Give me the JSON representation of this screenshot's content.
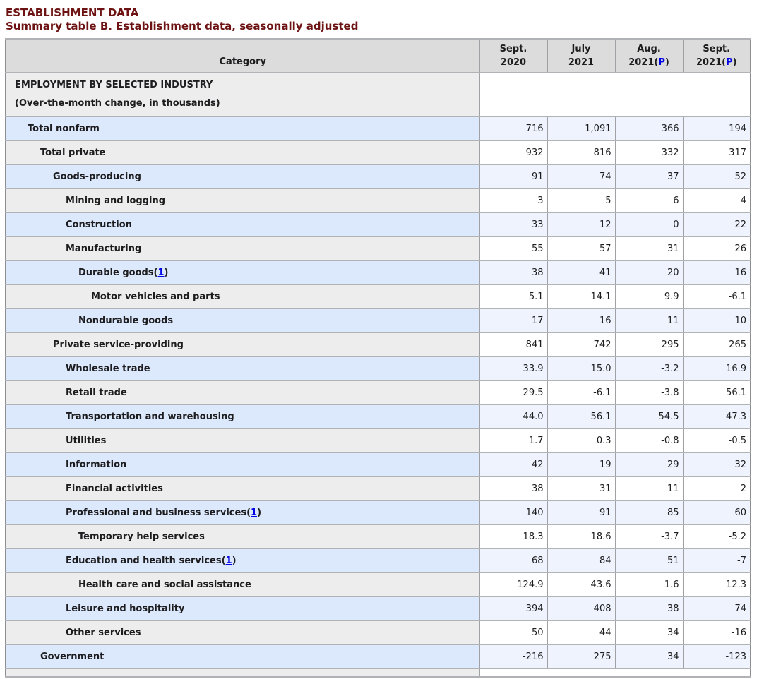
{
  "page": {
    "title": "ESTABLISHMENT DATA",
    "subtitle": "Summary table B. Establishment data, seasonally adjusted"
  },
  "colors": {
    "title_maroon": "#6e1313",
    "link_blue": "#0000e6",
    "row_blue_category": "#dce8fc",
    "row_blue_data": "#eef3fd",
    "row_gray_category": "#ededee",
    "row_gray_data": "#ffffff",
    "header_gray": "#dcdcdc"
  },
  "table": {
    "category_header": "Category",
    "preliminary_marker": "P",
    "footnote_marker": "1",
    "columns": [
      {
        "line1": "Sept.",
        "line2": "2020",
        "preliminary": false
      },
      {
        "line1": "July",
        "line2": "2021",
        "preliminary": false
      },
      {
        "line1": "Aug.",
        "line2": "2021",
        "preliminary": true
      },
      {
        "line1": "Sept.",
        "line2": "2021",
        "preliminary": true
      }
    ],
    "section": {
      "title": "EMPLOYMENT BY SELECTED INDUSTRY",
      "subtitle": "(Over-the-month change, in thousands)"
    },
    "rows": [
      {
        "label": "Total nonfarm",
        "indent": 1,
        "footnote": null,
        "values": [
          "716",
          "1,091",
          "366",
          "194"
        ]
      },
      {
        "label": "Total private",
        "indent": 2,
        "footnote": null,
        "values": [
          "932",
          "816",
          "332",
          "317"
        ]
      },
      {
        "label": "Goods-producing",
        "indent": 3,
        "footnote": null,
        "values": [
          "91",
          "74",
          "37",
          "52"
        ]
      },
      {
        "label": "Mining and logging",
        "indent": 4,
        "footnote": null,
        "values": [
          "3",
          "5",
          "6",
          "4"
        ]
      },
      {
        "label": "Construction",
        "indent": 4,
        "footnote": null,
        "values": [
          "33",
          "12",
          "0",
          "22"
        ]
      },
      {
        "label": "Manufacturing",
        "indent": 4,
        "footnote": null,
        "values": [
          "55",
          "57",
          "31",
          "26"
        ]
      },
      {
        "label": "Durable goods",
        "indent": 5,
        "footnote": "1",
        "values": [
          "38",
          "41",
          "20",
          "16"
        ]
      },
      {
        "label": "Motor vehicles and parts",
        "indent": 6,
        "footnote": null,
        "values": [
          "5.1",
          "14.1",
          "9.9",
          "-6.1"
        ]
      },
      {
        "label": "Nondurable goods",
        "indent": 5,
        "footnote": null,
        "values": [
          "17",
          "16",
          "11",
          "10"
        ]
      },
      {
        "label": "Private service-providing",
        "indent": 3,
        "footnote": null,
        "values": [
          "841",
          "742",
          "295",
          "265"
        ]
      },
      {
        "label": "Wholesale trade",
        "indent": 4,
        "footnote": null,
        "values": [
          "33.9",
          "15.0",
          "-3.2",
          "16.9"
        ]
      },
      {
        "label": "Retail trade",
        "indent": 4,
        "footnote": null,
        "values": [
          "29.5",
          "-6.1",
          "-3.8",
          "56.1"
        ]
      },
      {
        "label": "Transportation and warehousing",
        "indent": 4,
        "footnote": null,
        "values": [
          "44.0",
          "56.1",
          "54.5",
          "47.3"
        ]
      },
      {
        "label": "Utilities",
        "indent": 4,
        "footnote": null,
        "values": [
          "1.7",
          "0.3",
          "-0.8",
          "-0.5"
        ]
      },
      {
        "label": "Information",
        "indent": 4,
        "footnote": null,
        "values": [
          "42",
          "19",
          "29",
          "32"
        ]
      },
      {
        "label": "Financial activities",
        "indent": 4,
        "footnote": null,
        "values": [
          "38",
          "31",
          "11",
          "2"
        ]
      },
      {
        "label": "Professional and business services",
        "indent": 4,
        "footnote": "1",
        "values": [
          "140",
          "91",
          "85",
          "60"
        ]
      },
      {
        "label": "Temporary help services",
        "indent": 5,
        "footnote": null,
        "values": [
          "18.3",
          "18.6",
          "-3.7",
          "-5.2"
        ]
      },
      {
        "label": "Education and health services",
        "indent": 4,
        "footnote": "1",
        "values": [
          "68",
          "84",
          "51",
          "-7"
        ]
      },
      {
        "label": "Health care and social assistance",
        "indent": 5,
        "footnote": null,
        "values": [
          "124.9",
          "43.6",
          "1.6",
          "12.3"
        ]
      },
      {
        "label": "Leisure and hospitality",
        "indent": 4,
        "footnote": null,
        "values": [
          "394",
          "408",
          "38",
          "74"
        ]
      },
      {
        "label": "Other services",
        "indent": 4,
        "footnote": null,
        "values": [
          "50",
          "44",
          "34",
          "-16"
        ]
      },
      {
        "label": "Government",
        "indent": 2,
        "footnote": null,
        "values": [
          "-216",
          "275",
          "34",
          "-123"
        ]
      }
    ]
  }
}
